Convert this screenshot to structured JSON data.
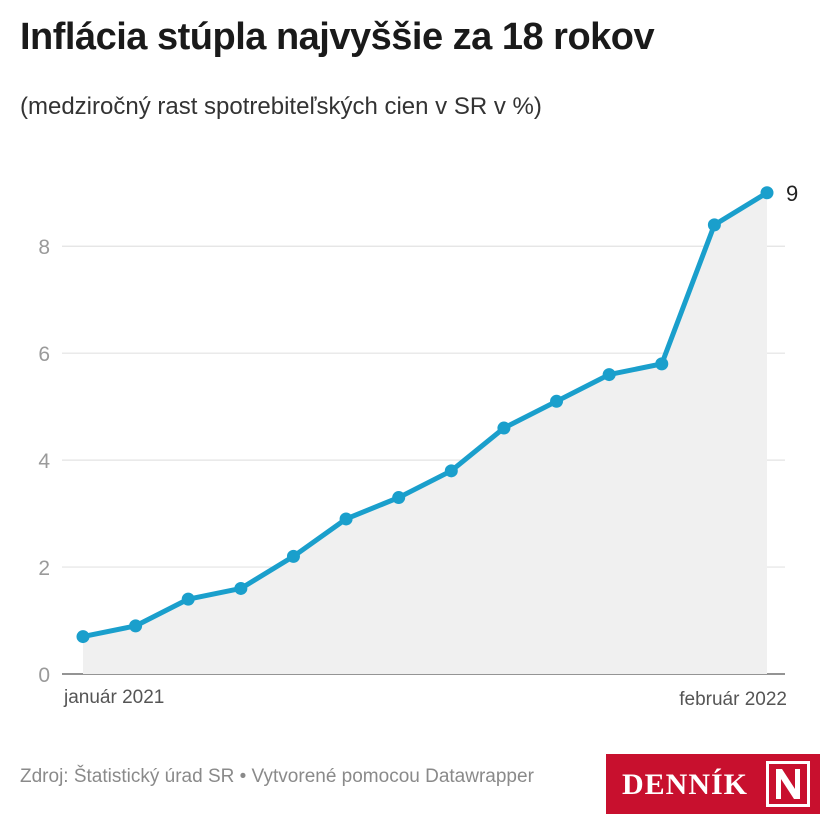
{
  "title": "Inflácia stúpla najvyššie za 18 rokov",
  "subtitle": "(medziročný rast spotrebiteľských cien v SR v %)",
  "source_text": "Zdroj: Štatistický úrad SR • Vytvorené pomocou Datawrapper",
  "logo": {
    "text": "DENNÍK",
    "mark": "N"
  },
  "colors": {
    "line": "#1a9fcc",
    "area": "#f0f0f0",
    "grid": "#e3e3e3",
    "axis_text": "#9a9a9a",
    "logo_bg": "#c8102e"
  },
  "chart_data": {
    "type": "area",
    "x_tick_labels": {
      "first": "január 2021",
      "last": "február 2022"
    },
    "x": [
      "2021-01",
      "2021-02",
      "2021-03",
      "2021-04",
      "2021-05",
      "2021-06",
      "2021-07",
      "2021-08",
      "2021-09",
      "2021-10",
      "2021-11",
      "2021-12",
      "2022-01",
      "2022-02"
    ],
    "values": [
      0.7,
      0.9,
      1.4,
      1.6,
      2.2,
      2.9,
      3.3,
      3.8,
      4.6,
      5.1,
      5.6,
      5.8,
      8.4,
      9.0
    ],
    "ylim": [
      0,
      9.8
    ],
    "yticks": [
      0,
      2,
      4,
      6,
      8
    ],
    "end_label": "9",
    "grid": true,
    "legend": "none"
  }
}
